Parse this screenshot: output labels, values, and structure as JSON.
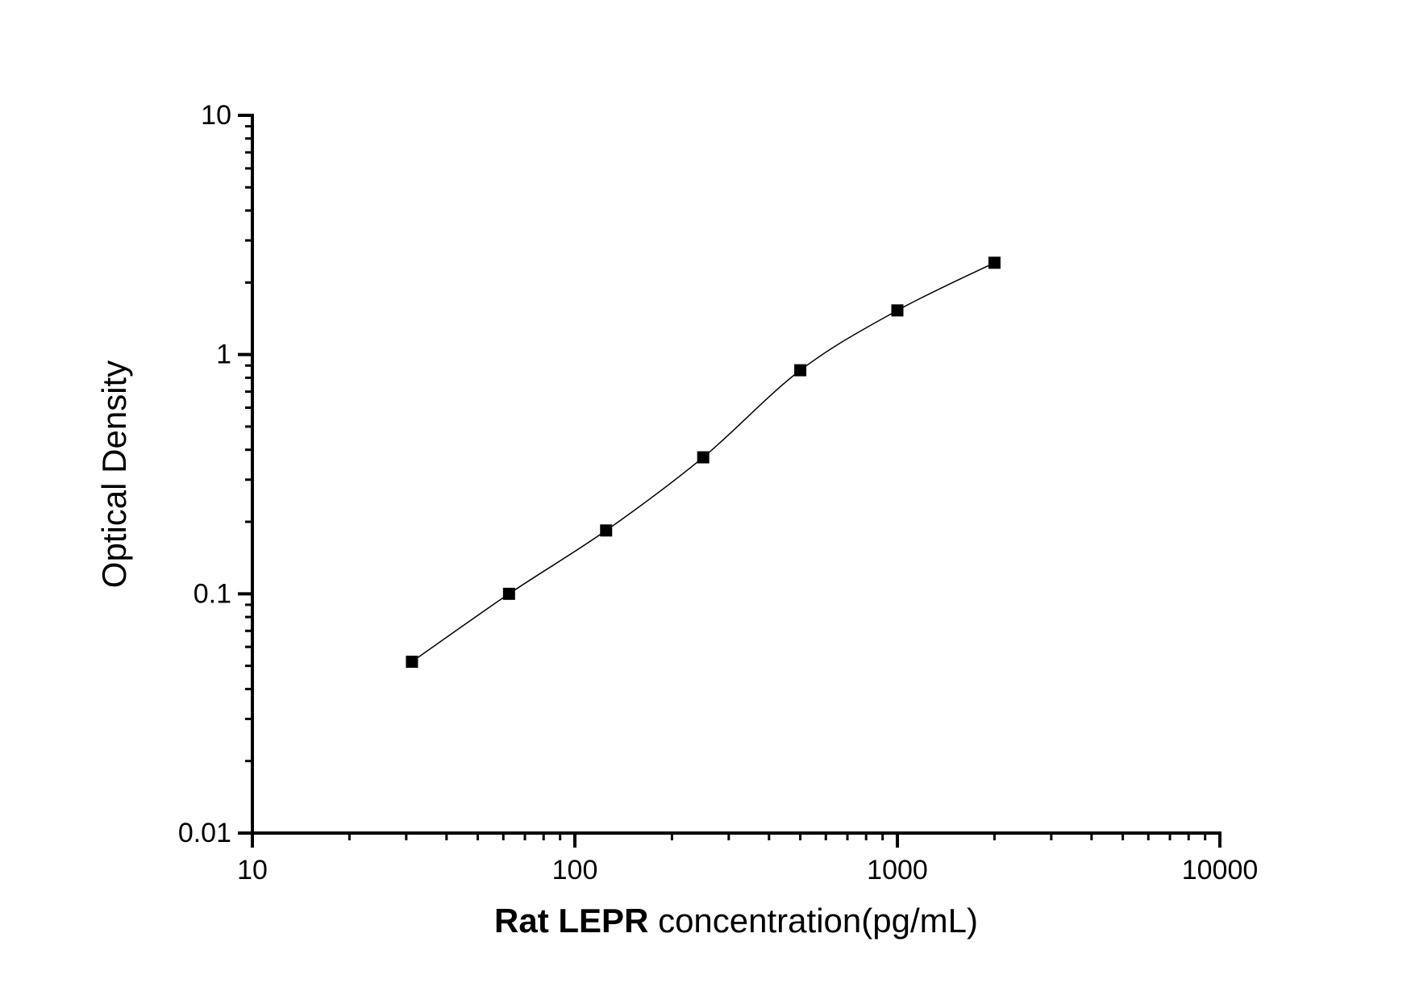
{
  "chart": {
    "background_color": "#ffffff",
    "axis_color": "#000000",
    "text_color": "#000000",
    "marker_color": "#000000",
    "line_color": "#000000"
  },
  "chart_data": {
    "type": "line",
    "title": "",
    "xlabel_bold": "Rat LEPR",
    "xlabel_rest": " concentration(pg/mL)",
    "ylabel": "Optical Density",
    "x_scale": "log",
    "y_scale": "log",
    "xlim": [
      10,
      10000
    ],
    "ylim": [
      0.01,
      10
    ],
    "grid": false,
    "legend": "none",
    "x_ticks": [
      {
        "value": 10,
        "label": "10"
      },
      {
        "value": 100,
        "label": "100"
      },
      {
        "value": 1000,
        "label": "1000"
      },
      {
        "value": 10000,
        "label": "10000"
      }
    ],
    "y_ticks": [
      {
        "value": 0.01,
        "label": "0.01"
      },
      {
        "value": 0.1,
        "label": "0.1"
      },
      {
        "value": 1,
        "label": "1"
      },
      {
        "value": 10,
        "label": "10"
      }
    ],
    "minor_ticks": "log-subdivisions-2-to-9",
    "series": [
      {
        "name": "standard-curve",
        "marker": "filled-square",
        "x": [
          31.25,
          62.5,
          125,
          250,
          500,
          1000,
          2000
        ],
        "y": [
          0.052,
          0.1,
          0.184,
          0.372,
          0.86,
          1.53,
          2.42
        ]
      }
    ]
  }
}
